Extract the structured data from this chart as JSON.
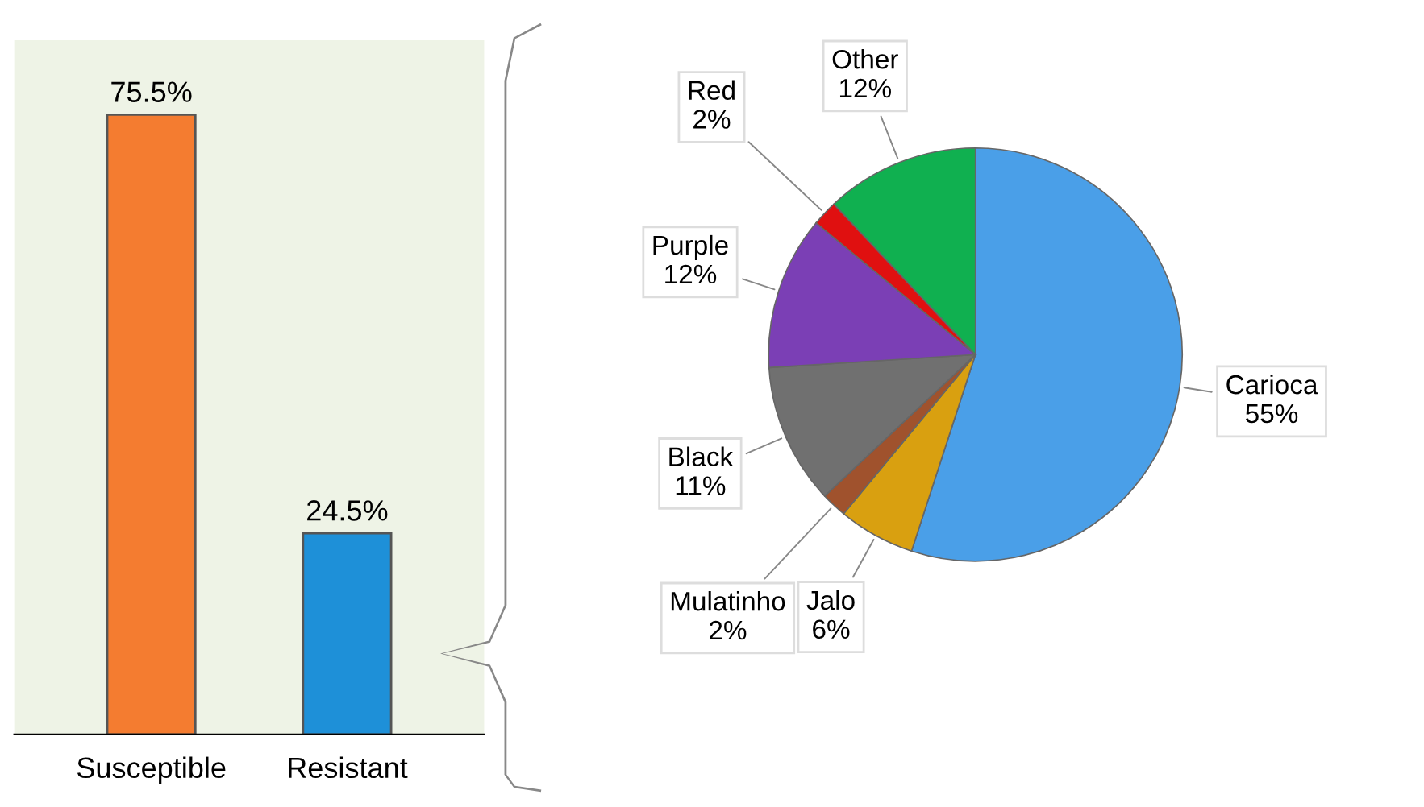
{
  "chart_data": [
    {
      "type": "bar",
      "categories": [
        "Susceptible",
        "Resistant"
      ],
      "values": [
        75.5,
        24.5
      ],
      "colors": [
        "#f47c30",
        "#1e90d8"
      ],
      "value_labels": [
        "75.5%",
        "24.5%"
      ]
    },
    {
      "type": "pie",
      "categories": [
        "Carioca",
        "Jalo",
        "Mulatinho",
        "Black",
        "Purple",
        "Red",
        "Other"
      ],
      "values": [
        55,
        6,
        2,
        11,
        12,
        2,
        12
      ],
      "colors": [
        "#4a9fe8",
        "#d9a010",
        "#a0522d",
        "#707070",
        "#7b3fb5",
        "#e01010",
        "#10b050"
      ],
      "value_labels": [
        "55%",
        "6%",
        "2%",
        "11%",
        "12%",
        "2%",
        "12%"
      ]
    }
  ]
}
